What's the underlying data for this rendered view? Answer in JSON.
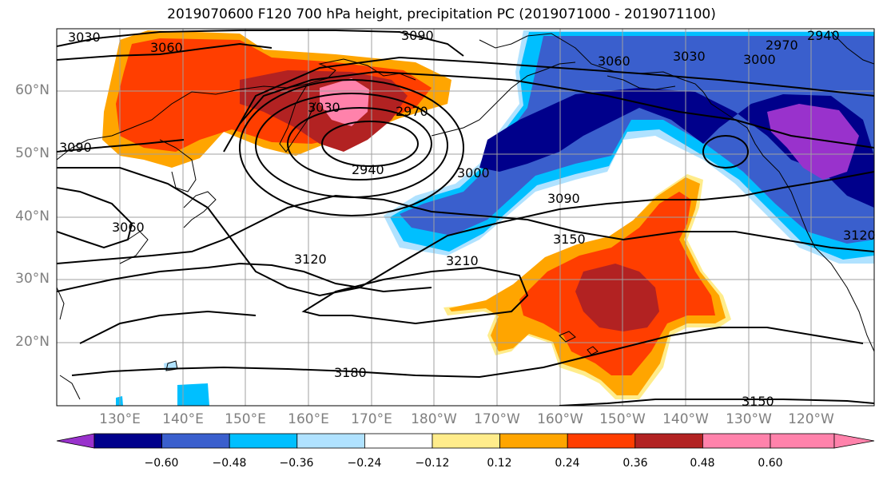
{
  "title": "2019070600 F120 700 hPa height, precipitation PC (2019071000 - 2019071100)",
  "map": {
    "lat_labels": [
      "60°N",
      "50°N",
      "40°N",
      "30°N",
      "20°N"
    ],
    "lon_labels": [
      "130°E",
      "140°E",
      "150°E",
      "160°E",
      "170°E",
      "180°W",
      "170°W",
      "160°W",
      "150°W",
      "140°W",
      "130°W",
      "120°W"
    ],
    "contour_labels": [
      "3030",
      "3090",
      "3060",
      "3060",
      "3030",
      "3000",
      "2970",
      "2940",
      "3030",
      "2970",
      "2940",
      "3000",
      "3090",
      "3090",
      "3060",
      "3150",
      "3120",
      "3210",
      "3180",
      "3150",
      "3120"
    ],
    "fill_colors": {
      "neg_060": "#9932cc",
      "neg_048": "#00008b",
      "neg_036": "#3a5fcd",
      "neg_024": "#00bfff",
      "neg_012": "#b0e2ff",
      "neutral": "#ffffff",
      "pos_012": "#ffec8b",
      "pos_024": "#ffa500",
      "pos_036": "#ff3e00",
      "pos_048": "#b22222",
      "pos_060": "#ff82ab"
    }
  },
  "colorbar": {
    "tick_labels": [
      "−0.60",
      "−0.48",
      "−0.36",
      "−0.24",
      "−0.12",
      "0.12",
      "0.24",
      "0.36",
      "0.48",
      "0.60"
    ],
    "colors": [
      "#9932cc",
      "#00008b",
      "#3a5fcd",
      "#00bfff",
      "#b0e2ff",
      "#ffffff",
      "#ffec8b",
      "#ffa500",
      "#ff3e00",
      "#b22222",
      "#ff82ab",
      "#ff82ab"
    ]
  }
}
